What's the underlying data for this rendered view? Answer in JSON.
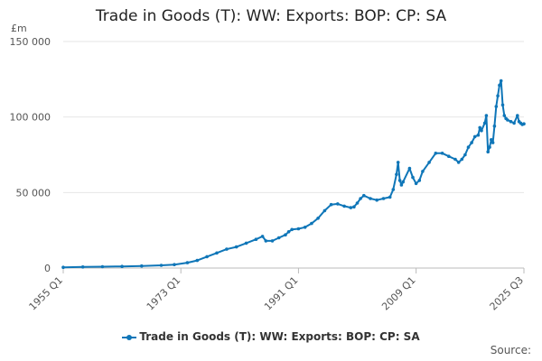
{
  "chart_data": {
    "type": "line",
    "title": "Trade in Goods (T): WW: Exports: BOP: CP: SA",
    "ylabel": "£m",
    "xlabel": "",
    "ylim": [
      0,
      150000
    ],
    "yticks": [
      0,
      50000,
      100000,
      150000
    ],
    "ytick_labels": [
      "0",
      "50 000",
      "100 000",
      "150 000"
    ],
    "xlim": [
      1955.0,
      2025.5
    ],
    "xticks": [
      1955.0,
      1973.0,
      1991.0,
      2009.0,
      2025.5
    ],
    "xtick_labels": [
      "1955 Q1",
      "1973 Q1",
      "1991 Q1",
      "2009 Q1",
      "2025 Q3"
    ],
    "grid": true,
    "legend_position": "bottom",
    "series": [
      {
        "name": "Trade in Goods (T): WW: Exports: BOP: CP: SA",
        "color": "#0f76b8",
        "x": [
          1955.0,
          1958.0,
          1961.0,
          1964.0,
          1967.0,
          1970.0,
          1972.0,
          1974.0,
          1975.5,
          1977.0,
          1978.5,
          1980.0,
          1981.5,
          1983.0,
          1984.5,
          1985.5,
          1986.0,
          1987.0,
          1988.0,
          1989.0,
          1989.5,
          1990.0,
          1991.0,
          1992.0,
          1993.0,
          1994.0,
          1995.0,
          1996.0,
          1997.0,
          1998.0,
          1999.0,
          1999.5,
          2000.0,
          2000.5,
          2001.0,
          2002.0,
          2003.0,
          2004.0,
          2005.0,
          2005.5,
          2006.0,
          2006.25,
          2006.5,
          2006.75,
          2007.0,
          2008.0,
          2008.5,
          2009.0,
          2009.5,
          2010.0,
          2011.0,
          2012.0,
          2013.0,
          2014.0,
          2015.0,
          2015.5,
          2016.0,
          2016.5,
          2017.0,
          2017.5,
          2018.0,
          2018.5,
          2018.75,
          2019.0,
          2019.5,
          2019.75,
          2020.0,
          2020.25,
          2020.5,
          2020.75,
          2021.0,
          2021.25,
          2021.5,
          2021.75,
          2022.0,
          2022.25,
          2022.5,
          2022.75,
          2023.0,
          2023.5,
          2024.0,
          2024.5,
          2024.75,
          2025.0,
          2025.25,
          2025.5
        ],
        "values": [
          500,
          700,
          900,
          1100,
          1400,
          1800,
          2300,
          3500,
          5000,
          7500,
          10000,
          12500,
          14000,
          16500,
          19000,
          21000,
          18000,
          18000,
          20000,
          22000,
          24000,
          25500,
          26000,
          27000,
          29500,
          33000,
          38000,
          42000,
          42500,
          41000,
          40000,
          40500,
          43000,
          46000,
          48000,
          46000,
          45000,
          46000,
          47000,
          52000,
          62000,
          70000,
          58000,
          55000,
          57000,
          66000,
          60000,
          56000,
          58000,
          64000,
          70000,
          76000,
          76000,
          74000,
          72000,
          70000,
          72000,
          75000,
          80000,
          83000,
          87000,
          88000,
          93000,
          91000,
          96000,
          101000,
          77000,
          80000,
          85000,
          83000,
          94000,
          107000,
          114000,
          121000,
          124000,
          108000,
          101000,
          99000,
          98000,
          97000,
          96000,
          101000,
          97000,
          96000,
          95000,
          95500
        ]
      }
    ]
  },
  "legend": {
    "label": "Trade in Goods (T): WW: Exports: BOP: CP: SA"
  },
  "source_label": "Source:"
}
